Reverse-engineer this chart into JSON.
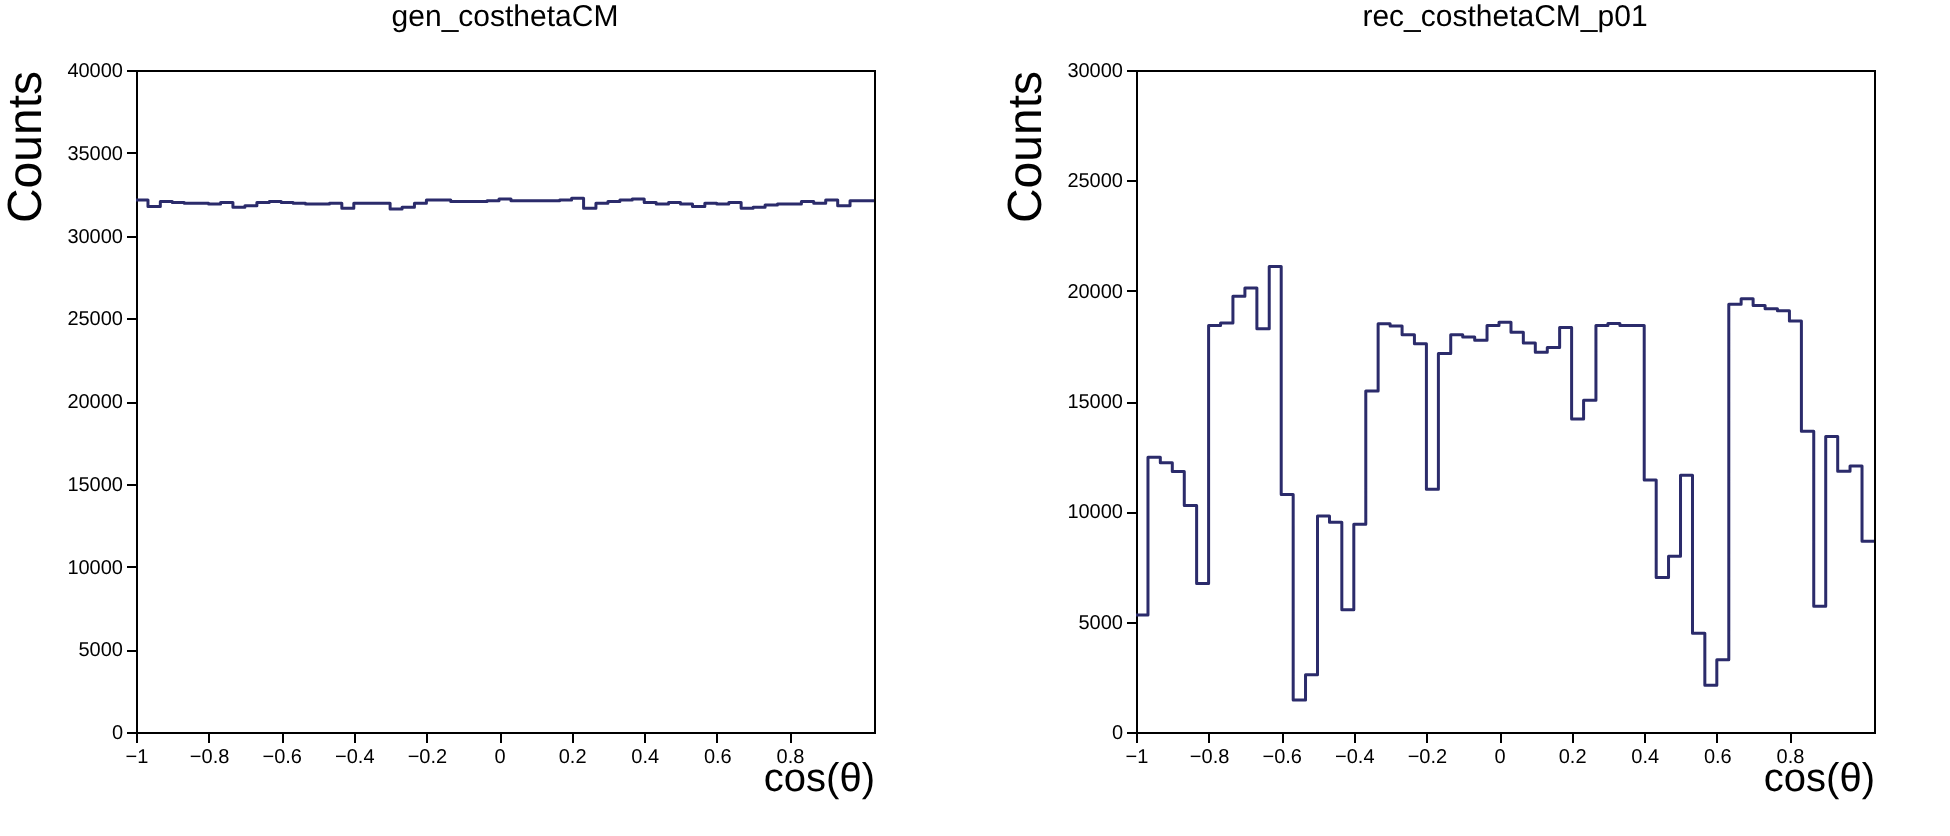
{
  "chart_data": [
    {
      "type": "histogram",
      "title": "gen_costhetaCM",
      "xlabel": "cos(θ)",
      "ylabel": "Counts",
      "color": "#2b2b6b",
      "bins": [
        -1,
        -0.967,
        -0.933,
        -0.9,
        -0.867,
        -0.833,
        -0.8,
        -0.767,
        -0.733,
        -0.7,
        -0.667,
        -0.633,
        -0.6,
        -0.567,
        -0.533,
        -0.5,
        -0.467,
        -0.433,
        -0.4,
        -0.367,
        -0.333,
        -0.3,
        -0.267,
        -0.233,
        -0.2,
        -0.167,
        -0.133,
        -0.1,
        -0.067,
        -0.033,
        0,
        0.033,
        0.067,
        0.1,
        0.133,
        0.167,
        0.2,
        0.233,
        0.267,
        0.3,
        0.333,
        0.367,
        0.4,
        0.433,
        0.467,
        0.5,
        0.533,
        0.567,
        0.6,
        0.633,
        0.667,
        0.7,
        0.733,
        0.767,
        0.8,
        0.833,
        0.867,
        0.9,
        0.933,
        0.967,
        1,
        1.033
      ],
      "values": [
        32150,
        31750,
        32050,
        32000,
        31950,
        31950,
        31900,
        32000,
        31700,
        31800,
        32000,
        32050,
        32000,
        31950,
        31900,
        31900,
        31950,
        31650,
        31950,
        31950,
        31950,
        31600,
        31700,
        31950,
        32150,
        32150,
        32050,
        32050,
        32050,
        32100,
        32200,
        32100,
        32100,
        32100,
        32100,
        32150,
        32250,
        31650,
        31950,
        32050,
        32150,
        32200,
        32000,
        31900,
        32000,
        31900,
        31750,
        31950,
        31900,
        32000,
        31650,
        31700,
        31850,
        31900,
        31900,
        32050,
        31950,
        32150,
        31800,
        32100,
        32100
      ],
      "xlim": [
        -1,
        1.033
      ],
      "xticks": [
        -1,
        -0.8,
        -0.6,
        -0.4,
        -0.2,
        0,
        0.2,
        0.4,
        0.6,
        0.8
      ],
      "ylim": [
        0,
        40000
      ],
      "yticks": [
        0,
        5000,
        10000,
        15000,
        20000,
        25000,
        30000,
        35000,
        40000
      ]
    },
    {
      "type": "histogram",
      "title": "rec_costhetaCM_p01",
      "xlabel": "cos(θ)",
      "ylabel": "Counts",
      "color": "#2b2b6b",
      "bins": [
        -1,
        -0.967,
        -0.933,
        -0.9,
        -0.867,
        -0.833,
        -0.8,
        -0.767,
        -0.733,
        -0.7,
        -0.667,
        -0.633,
        -0.6,
        -0.567,
        -0.533,
        -0.5,
        -0.467,
        -0.433,
        -0.4,
        -0.367,
        -0.333,
        -0.3,
        -0.267,
        -0.233,
        -0.2,
        -0.167,
        -0.133,
        -0.1,
        -0.067,
        -0.033,
        0,
        0.033,
        0.067,
        0.1,
        0.133,
        0.167,
        0.2,
        0.233,
        0.267,
        0.3,
        0.333,
        0.367,
        0.4,
        0.433,
        0.467,
        0.5,
        0.533,
        0.567,
        0.6,
        0.633,
        0.667,
        0.7,
        0.733,
        0.767,
        0.8,
        0.833,
        0.867,
        0.9,
        0.933,
        0.967,
        1,
        1.033
      ],
      "values": [
        5300,
        12450,
        12200,
        11800,
        10270,
        6730,
        18420,
        18540,
        19750,
        20120,
        18270,
        21090,
        10760,
        1450,
        2600,
        9790,
        9510,
        5540,
        9420,
        15450,
        18500,
        18400,
        18000,
        17600,
        11000,
        17150,
        18000,
        17900,
        17750,
        18420,
        18570,
        18120,
        17630,
        17210,
        17420,
        18330,
        14180,
        15030,
        18420,
        18510,
        18420,
        18420,
        11420,
        7000,
        7970,
        11640,
        4480,
        2120,
        3270,
        19390,
        19630,
        19330,
        19180,
        19090,
        18630,
        13630,
        5700,
        13390,
        11820,
        12060,
        8640
      ],
      "xlim": [
        -1,
        1.033
      ],
      "xticks": [
        -1,
        -0.8,
        -0.6,
        -0.4,
        -0.2,
        0,
        0.2,
        0.4,
        0.6,
        0.8
      ],
      "ylim": [
        0,
        30000
      ],
      "yticks": [
        0,
        5000,
        10000,
        15000,
        20000,
        25000,
        30000
      ]
    }
  ]
}
